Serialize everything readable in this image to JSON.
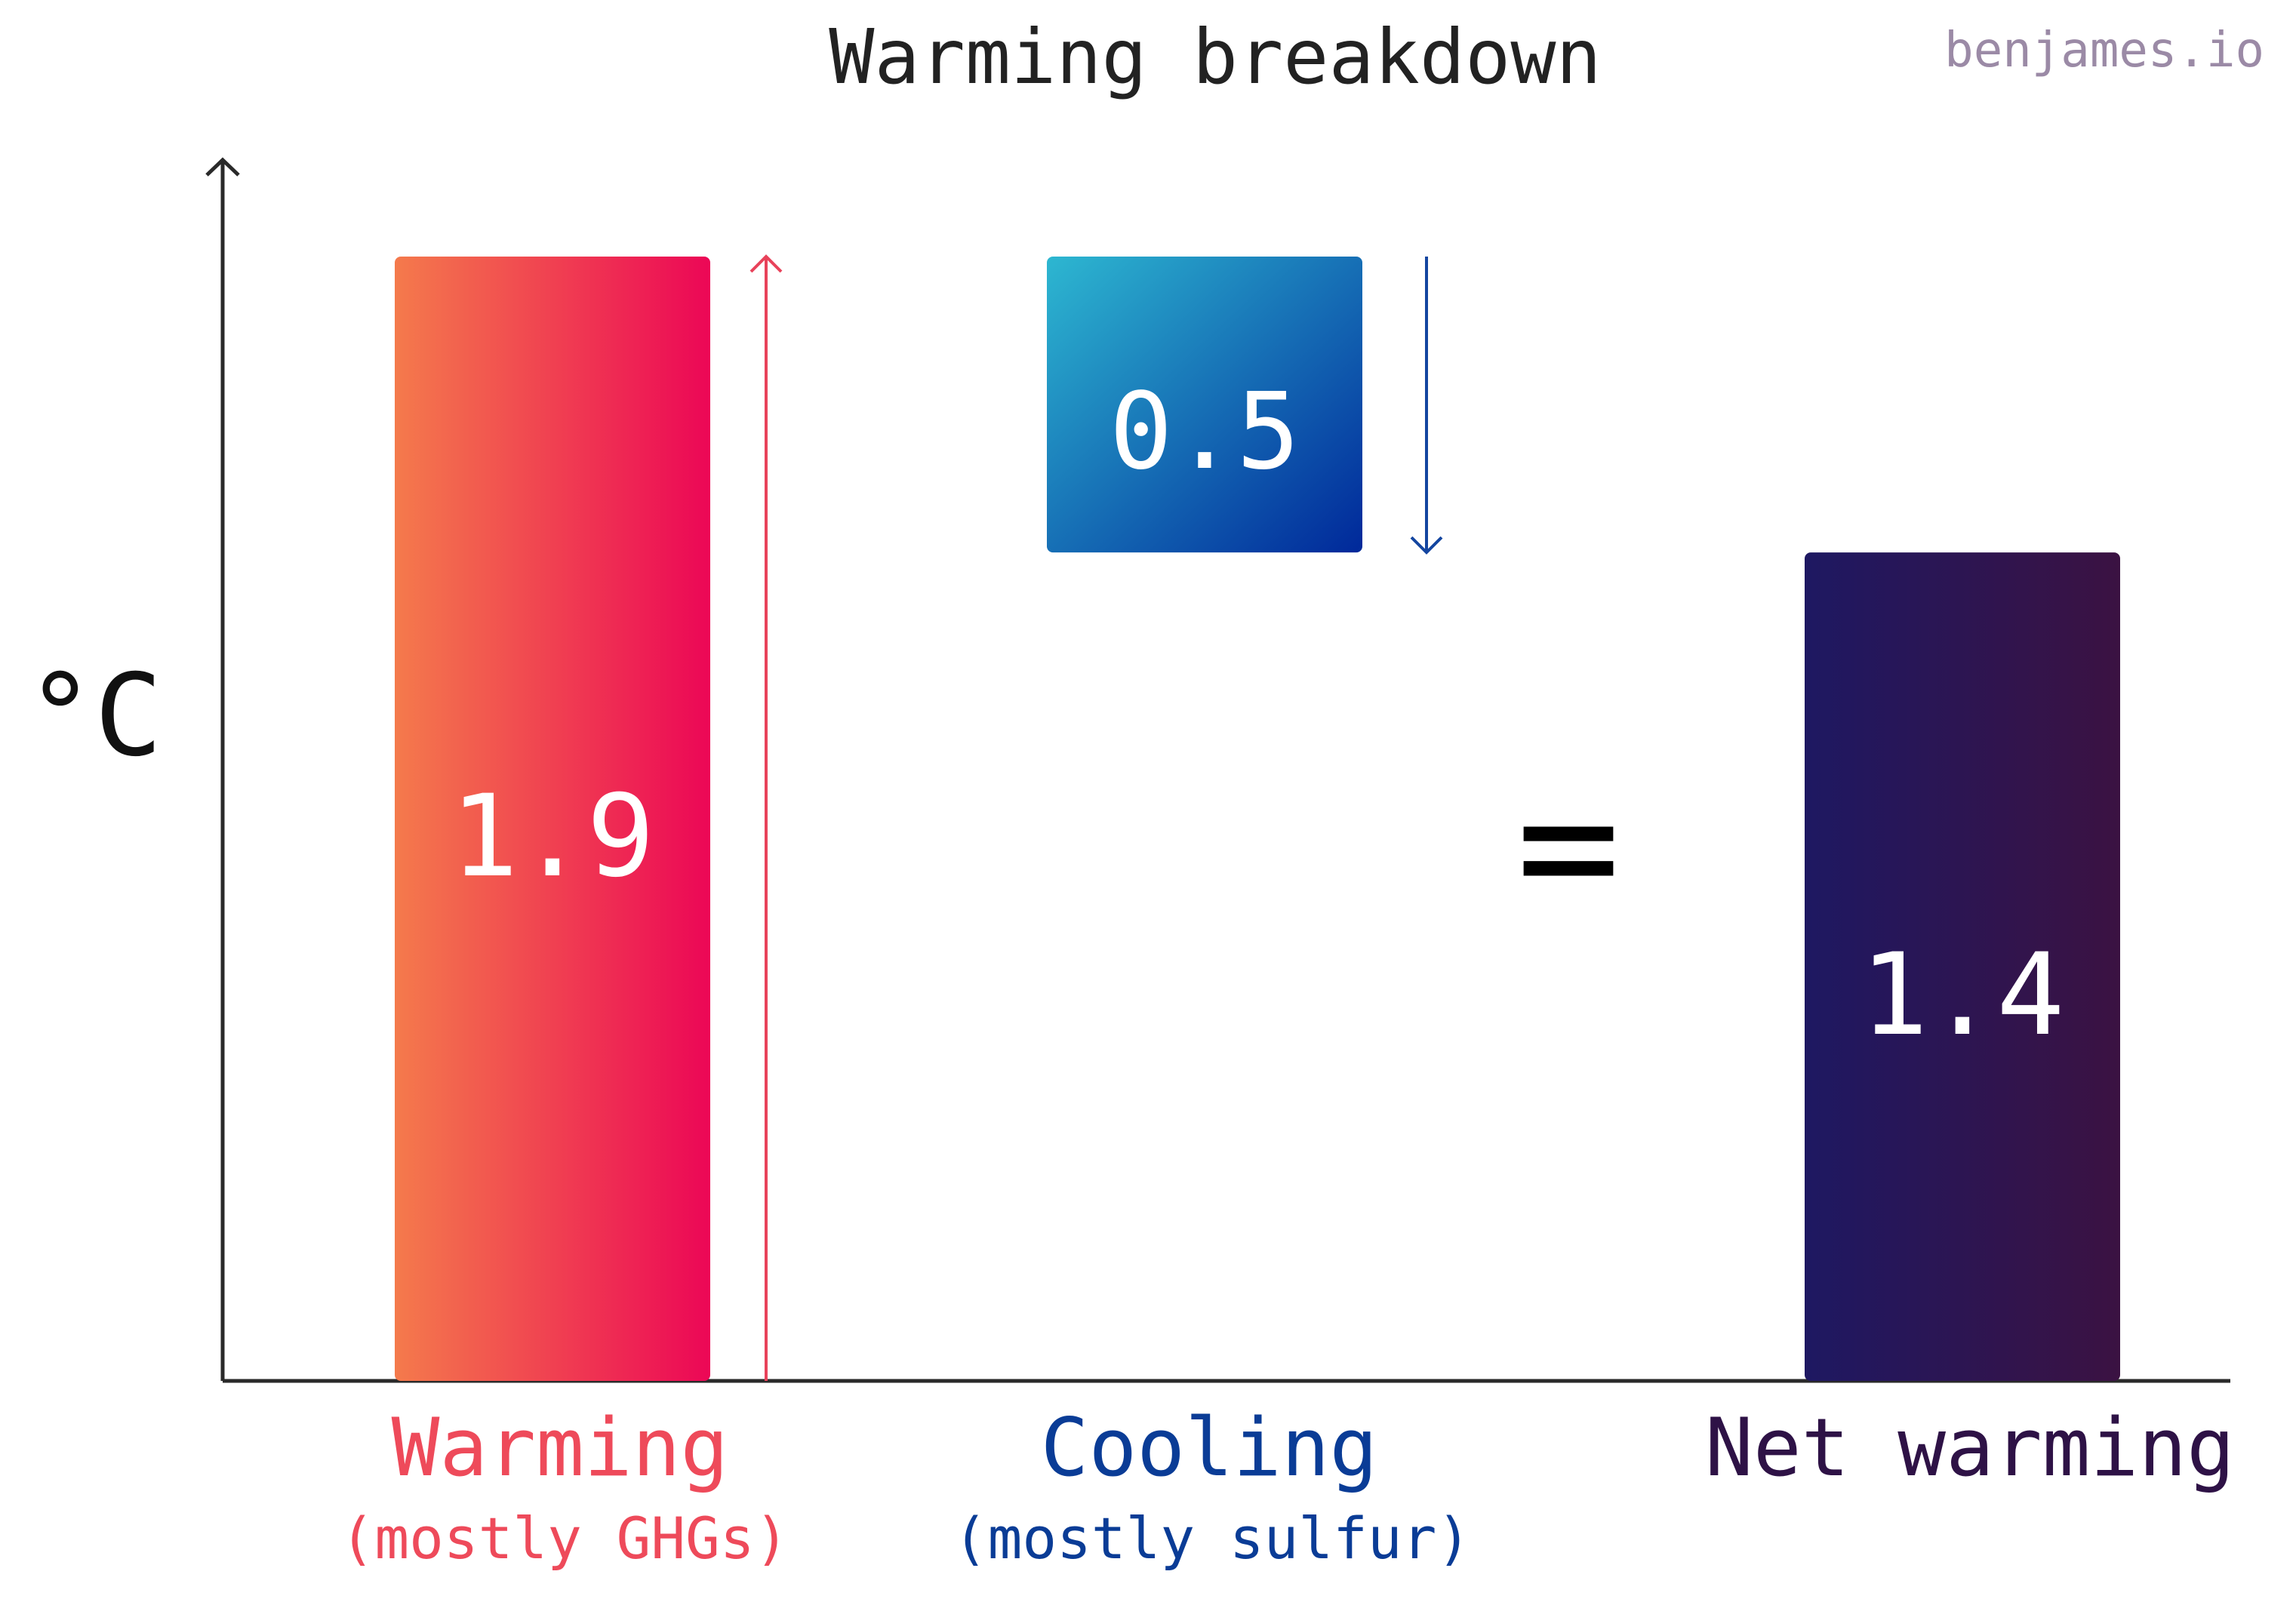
{
  "chart_data": {
    "type": "bar",
    "title": "Warming breakdown",
    "watermark": "benjames.io",
    "ylabel": "°C",
    "ylim": [
      0,
      2.3
    ],
    "grid": false,
    "bars": [
      {
        "key": "warming",
        "label": "Warming",
        "sublabel": "(mostly GHGs)",
        "value_label": "1.9",
        "base": 0,
        "top": 1.9,
        "color_start": "#F47A4C",
        "color_end": "#EC0756",
        "label_color": "#EE4A5A",
        "arrow": "up"
      },
      {
        "key": "cooling",
        "label": "Cooling",
        "sublabel": "(mostly sulfur)",
        "value_label": "0.5",
        "base": 1.4,
        "top": 1.9,
        "color_start": "#2DB7D1",
        "color_end": "#00289A",
        "label_color": "#0A3C96",
        "arrow": "down"
      },
      {
        "key": "net",
        "label": "Net warming",
        "sublabel": "",
        "value_label": "1.4",
        "base": 0,
        "top": 1.4,
        "color_start": "#1E1862",
        "color_end": "#3B1242",
        "label_color": "#2E1246",
        "arrow": ""
      }
    ],
    "equals_sign": "="
  },
  "colors": {
    "axis": "#2a2a2a",
    "title": "#222222",
    "watermark": "#9B8AA6",
    "up_arrow": "#E8425A",
    "down_arrow": "#1446A0",
    "value_text": "#ffffff"
  }
}
